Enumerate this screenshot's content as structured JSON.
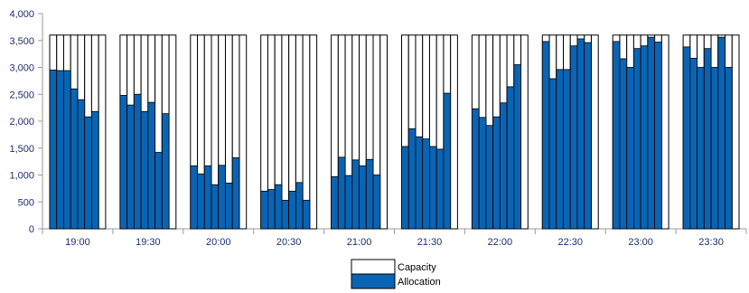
{
  "chart_data": {
    "type": "bar",
    "categories": [
      "19:00",
      "19:30",
      "20:00",
      "20:30",
      "21:00",
      "21:30",
      "22:00",
      "22:30",
      "23:00",
      "23:30"
    ],
    "bars_per_group": 8,
    "y_ticks": [
      "0",
      "500",
      "1,000",
      "1,500",
      "2,000",
      "2,500",
      "3,000",
      "3,500",
      "4,000"
    ],
    "ylim": [
      0,
      4000
    ],
    "series": [
      {
        "name": "Capacity",
        "color": "#ffffff",
        "stroke": "#000000",
        "values": [
          3600,
          3600,
          3600,
          3600,
          3600,
          3600,
          3600,
          3600,
          3600,
          3600
        ]
      },
      {
        "name": "Allocation",
        "color": "#0a64b4",
        "groups": [
          [
            2950,
            2940,
            2940,
            2600,
            2400,
            2080,
            2180
          ],
          [
            2480,
            2300,
            2500,
            2180,
            2350,
            1420,
            2140
          ],
          [
            1170,
            1020,
            1170,
            820,
            1180,
            850,
            1320
          ],
          [
            700,
            730,
            820,
            530,
            700,
            860,
            530
          ],
          [
            970,
            1330,
            990,
            1280,
            1170,
            1290,
            1000
          ],
          [
            1530,
            1860,
            1710,
            1670,
            1530,
            1480,
            2520
          ],
          [
            2230,
            2070,
            1920,
            2080,
            2340,
            2640,
            3050
          ],
          [
            3480,
            2790,
            2960,
            2960,
            3400,
            3530,
            3460
          ],
          [
            3480,
            3160,
            3000,
            3350,
            3400,
            3560,
            3470
          ],
          [
            3380,
            3170,
            3000,
            3350,
            3000,
            3560,
            3000
          ]
        ]
      }
    ],
    "grid": false,
    "legend_position": "bottom"
  }
}
